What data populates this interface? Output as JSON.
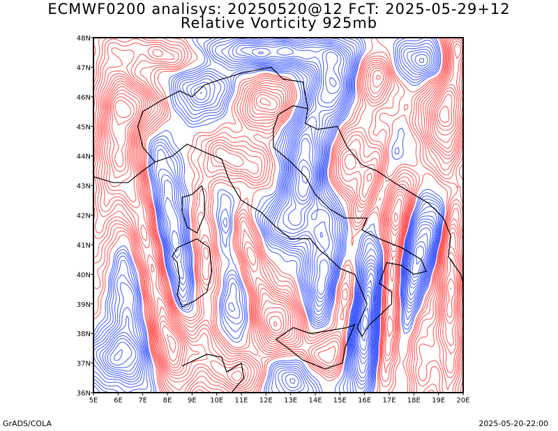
{
  "header": {
    "title_line1": "ECMWF0200 analisys: 20250520@12 FcT: 2025-05-29+12",
    "title_line2": "Relative Vorticity 925mb"
  },
  "map": {
    "lat_labels": [
      "36N",
      "37N",
      "38N",
      "39N",
      "40N",
      "41N",
      "42N",
      "43N",
      "44N",
      "45N",
      "46N",
      "47N",
      "48N"
    ],
    "lon_labels": [
      "5E",
      "6E",
      "7E",
      "8E",
      "9E",
      "10E",
      "11E",
      "12E",
      "13E",
      "14E",
      "15E",
      "16E",
      "17E",
      "18E",
      "19E",
      "20E"
    ],
    "lat_range": [
      36,
      48
    ],
    "lon_range": [
      5,
      20
    ],
    "colors": {
      "positive_contours": "#ff4a4a",
      "negative_contours": "#3a55ff",
      "coastline": "#000000"
    }
  },
  "footer": {
    "left": "GrADS/COLA",
    "right": "2025-05-20-22:00"
  }
}
